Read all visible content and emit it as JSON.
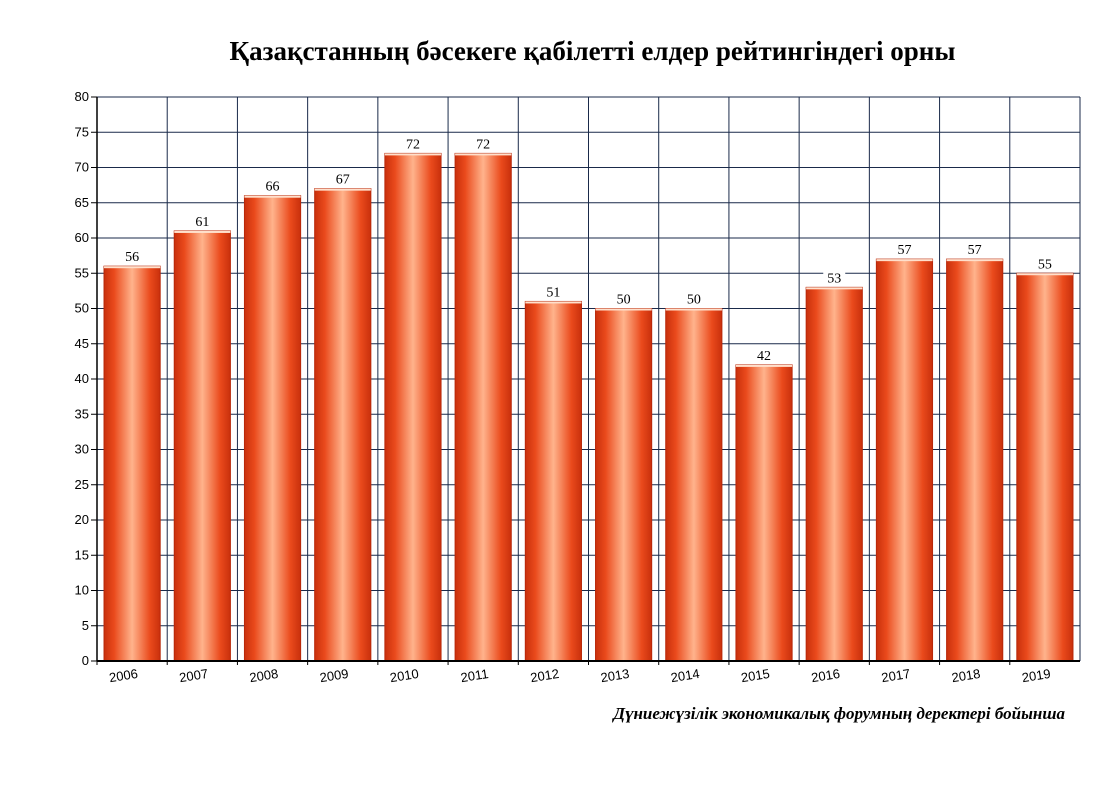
{
  "chart_data": {
    "type": "bar",
    "title": "Қазақстанның бәсекеге қабілетті елдер рейтингіндегі орны",
    "source_note": "Дүниежүзілік экономикалық форумның деректері бойынша",
    "categories": [
      "2006",
      "2007",
      "2008",
      "2009",
      "2010",
      "2011",
      "2012",
      "2013",
      "2014",
      "2015",
      "2016",
      "2017",
      "2018",
      "2019"
    ],
    "values": [
      56,
      61,
      66,
      67,
      72,
      72,
      51,
      50,
      50,
      42,
      53,
      57,
      57,
      55
    ],
    "ylim": [
      0,
      80
    ],
    "yticks": [
      0,
      5,
      10,
      15,
      20,
      25,
      30,
      35,
      40,
      45,
      50,
      55,
      60,
      65,
      70,
      75,
      80
    ],
    "grid": true,
    "legend": "none",
    "bar_color": "#e8421a",
    "bar_highlight": "#ffb089",
    "bar_edge": "#b8280a"
  }
}
